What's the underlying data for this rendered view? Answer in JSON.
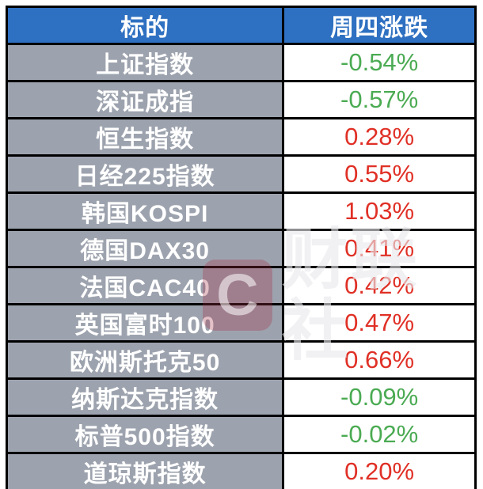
{
  "chart_data": {
    "type": "table",
    "columns": [
      "标的",
      "周四涨跌"
    ],
    "categories": [
      "上证指数",
      "深证成指",
      "恒生指数",
      "日经225指数",
      "韩国KOSPI",
      "德国DAX30",
      "法国CAC40",
      "英国富时100",
      "欧洲斯托克50",
      "纳斯达克指数",
      "标普500指数",
      "道琼斯指数"
    ],
    "series": [
      {
        "name": "周四涨跌 (%)",
        "values": [
          -0.54,
          -0.57,
          0.28,
          0.55,
          1.03,
          0.41,
          0.42,
          0.47,
          0.66,
          -0.09,
          -0.02,
          0.2
        ]
      }
    ],
    "value_format": "percent",
    "color_convention": "up=red, down=green"
  },
  "table": {
    "headers": [
      "标的",
      "周四涨跌"
    ],
    "rows": [
      {
        "label": "上证指数",
        "value": "-0.54%",
        "direction": "down"
      },
      {
        "label": "深证成指",
        "value": "-0.57%",
        "direction": "down"
      },
      {
        "label": "恒生指数",
        "value": "0.28%",
        "direction": "up"
      },
      {
        "label": "日经225指数",
        "value": "0.55%",
        "direction": "up"
      },
      {
        "label": "韩国KOSPI",
        "value": "1.03%",
        "direction": "up"
      },
      {
        "label": "德国DAX30",
        "value": "0.41%",
        "direction": "up"
      },
      {
        "label": "法国CAC40",
        "value": "0.42%",
        "direction": "up"
      },
      {
        "label": "英国富时100",
        "value": "0.47%",
        "direction": "up"
      },
      {
        "label": "欧洲斯托克50",
        "value": "0.66%",
        "direction": "up"
      },
      {
        "label": "纳斯达克指数",
        "value": "-0.09%",
        "direction": "down"
      },
      {
        "label": "标普500指数",
        "value": "-0.02%",
        "direction": "down"
      },
      {
        "label": "道琼斯指数",
        "value": "0.20%",
        "direction": "up"
      }
    ]
  },
  "watermark": {
    "logo_letter": "C",
    "text": "财联社"
  },
  "colors": {
    "header_bg": "#2E70C1",
    "label_bg": "#9DA3AE",
    "up": "#E03026",
    "down": "#4BAB53",
    "border": "#000000"
  }
}
